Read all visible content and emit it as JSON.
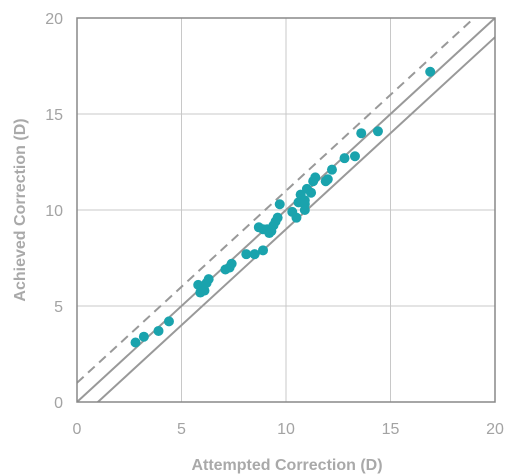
{
  "chart_data": {
    "type": "scatter",
    "xlabel": "Attempted Correction (D)",
    "ylabel": "Achieved Correction (D)",
    "xlim": [
      0,
      20
    ],
    "ylim": [
      0,
      20
    ],
    "xticks": [
      "0",
      "5",
      "10",
      "15",
      "20"
    ],
    "yticks": [
      "0",
      "5",
      "10",
      "15",
      "20"
    ],
    "grid": true,
    "colors": {
      "points": "#1aa3ad",
      "lines": "#999999",
      "grid": "#c8c8c8",
      "axis": "#888888"
    },
    "reference_lines": [
      {
        "style": "dashed",
        "slope": 1,
        "intercept": 1
      },
      {
        "style": "solid",
        "slope": 1,
        "intercept": 0
      },
      {
        "style": "solid",
        "slope": 1,
        "intercept": -1
      }
    ],
    "points": [
      [
        2.8,
        3.1
      ],
      [
        3.2,
        3.4
      ],
      [
        3.9,
        3.7
      ],
      [
        4.4,
        4.2
      ],
      [
        5.8,
        6.1
      ],
      [
        5.9,
        5.7
      ],
      [
        6.0,
        6.0
      ],
      [
        6.1,
        5.8
      ],
      [
        6.2,
        6.2
      ],
      [
        6.3,
        6.4
      ],
      [
        7.1,
        6.9
      ],
      [
        7.3,
        7.0
      ],
      [
        7.4,
        7.2
      ],
      [
        8.1,
        7.7
      ],
      [
        8.5,
        7.7
      ],
      [
        8.7,
        9.1
      ],
      [
        8.9,
        7.9
      ],
      [
        8.9,
        9.0
      ],
      [
        9.1,
        9.0
      ],
      [
        9.2,
        8.8
      ],
      [
        9.3,
        8.9
      ],
      [
        9.4,
        9.2
      ],
      [
        9.5,
        9.4
      ],
      [
        9.6,
        9.6
      ],
      [
        9.7,
        10.3
      ],
      [
        10.3,
        9.9
      ],
      [
        10.5,
        9.6
      ],
      [
        10.6,
        10.4
      ],
      [
        10.7,
        10.8
      ],
      [
        10.9,
        10.0
      ],
      [
        10.9,
        10.3
      ],
      [
        10.9,
        10.5
      ],
      [
        11.0,
        11.1
      ],
      [
        11.2,
        10.9
      ],
      [
        11.3,
        11.5
      ],
      [
        11.4,
        11.7
      ],
      [
        11.9,
        11.5
      ],
      [
        12.0,
        11.6
      ],
      [
        12.2,
        12.1
      ],
      [
        12.8,
        12.7
      ],
      [
        13.3,
        12.8
      ],
      [
        13.6,
        14.0
      ],
      [
        14.4,
        14.1
      ],
      [
        16.9,
        17.2
      ]
    ]
  }
}
